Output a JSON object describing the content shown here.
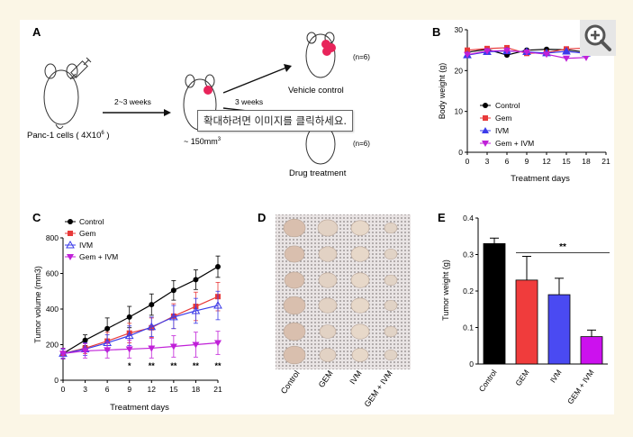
{
  "panel_labels": {
    "a": "A",
    "b": "B",
    "c": "C",
    "d": "D",
    "e": "E"
  },
  "panel_a": {
    "cells_label": "Panc-1 cells ( 4X10",
    "cells_exp": "6",
    "cells_end": " )",
    "weeks_label": "2~3 weeks",
    "volume_label": "~ 150mm",
    "volume_exp": "3",
    "three_weeks_label": "3 weeks",
    "vehicle_label": "Vehicle control",
    "drug_label": "Drug treatment",
    "n_top": "(n=6)",
    "n_bottom": "(n=6)",
    "tumor_color": "#e8245a"
  },
  "tooltip": "확대하려면 이미지를 클릭하세요.",
  "zoom_icon": "zoom-in-icon",
  "chart_data": [
    {
      "panel": "B",
      "type": "line",
      "xlabel": "Treatment days",
      "ylabel": "Body weight (g)",
      "x": [
        0,
        3,
        6,
        9,
        12,
        15,
        18,
        21
      ],
      "xticks": [
        "0",
        "3",
        "6",
        "9",
        "12",
        "15",
        "18",
        "21"
      ],
      "yticks": [
        "0",
        "10",
        "20",
        "30"
      ],
      "ylim": [
        0,
        30
      ],
      "legend_position": "bottom-left",
      "series": [
        {
          "name": "Control",
          "color": "#000000",
          "marker": "circle",
          "values": [
            24.5,
            25.2,
            23.8,
            25.0,
            25.2,
            25.1,
            24.5,
            null
          ]
        },
        {
          "name": "Gem",
          "color": "#e83a3a",
          "marker": "square",
          "values": [
            25.0,
            25.4,
            25.6,
            24.2,
            24.4,
            25.3,
            25.5,
            null
          ]
        },
        {
          "name": "IVM",
          "color": "#3b3bea",
          "marker": "triangle",
          "values": [
            23.8,
            24.6,
            24.8,
            24.6,
            24.3,
            24.7,
            24.2,
            null
          ]
        },
        {
          "name": "Gem + IVM",
          "color": "#c020d8",
          "marker": "triangle-down",
          "values": [
            23.9,
            24.8,
            24.9,
            24.5,
            24.0,
            23.0,
            23.2,
            null
          ]
        }
      ]
    },
    {
      "panel": "C",
      "type": "line",
      "xlabel": "Treatment  days",
      "ylabel": "Tumor volume (mm3)",
      "x": [
        0,
        3,
        6,
        9,
        12,
        15,
        18,
        21
      ],
      "xticks": [
        "0",
        "3",
        "6",
        "9",
        "12",
        "15",
        "18",
        "21"
      ],
      "yticks": [
        "0",
        "200",
        "400",
        "600",
        "800"
      ],
      "ylim": [
        0,
        800
      ],
      "legend_position": "top-left",
      "significance": [
        {
          "x": 9,
          "label": "*"
        },
        {
          "x": 12,
          "label": "**"
        },
        {
          "x": 15,
          "label": "**"
        },
        {
          "x": 18,
          "label": "**"
        },
        {
          "x": 21,
          "label": "**"
        }
      ],
      "series": [
        {
          "name": "Control",
          "color": "#000000",
          "marker": "circle",
          "values": [
            150,
            225,
            290,
            355,
            425,
            505,
            565,
            638
          ],
          "errors": [
            30,
            30,
            60,
            60,
            60,
            55,
            55,
            60
          ]
        },
        {
          "name": "Gem",
          "color": "#e83a3a",
          "marker": "square",
          "values": [
            150,
            180,
            220,
            265,
            295,
            360,
            415,
            470
          ],
          "errors": [
            25,
            30,
            50,
            55,
            55,
            70,
            80,
            80
          ]
        },
        {
          "name": "IVM",
          "color": "#3b3bea",
          "marker": "triangle",
          "values": [
            150,
            175,
            210,
            250,
            300,
            355,
            390,
            420
          ],
          "errors": [
            25,
            35,
            45,
            55,
            55,
            65,
            70,
            80
          ]
        },
        {
          "name": "Gem + IVM",
          "color": "#c020d8",
          "marker": "triangle-down",
          "values": [
            150,
            165,
            170,
            175,
            180,
            190,
            200,
            210
          ],
          "errors": [
            30,
            40,
            45,
            50,
            55,
            60,
            70,
            65
          ]
        }
      ]
    },
    {
      "panel": "E",
      "type": "bar",
      "ylabel": "Tumor weight  (g)",
      "categories": [
        "Control",
        "GEM",
        "IVM",
        "GEM + IVM"
      ],
      "values": [
        0.33,
        0.23,
        0.19,
        0.075
      ],
      "errors": [
        0.015,
        0.065,
        0.045,
        0.018
      ],
      "colors": [
        "#000000",
        "#f03c3c",
        "#4a4af2",
        "#cc11ee"
      ],
      "yticks": [
        "0",
        "0.1",
        "0.2",
        "0.3",
        "0.4"
      ],
      "ylim": [
        0,
        0.4
      ],
      "significance": "**"
    }
  ],
  "panel_d": {
    "columns": [
      "Control",
      "GEM",
      "IVM",
      "GEM + IVM"
    ]
  }
}
